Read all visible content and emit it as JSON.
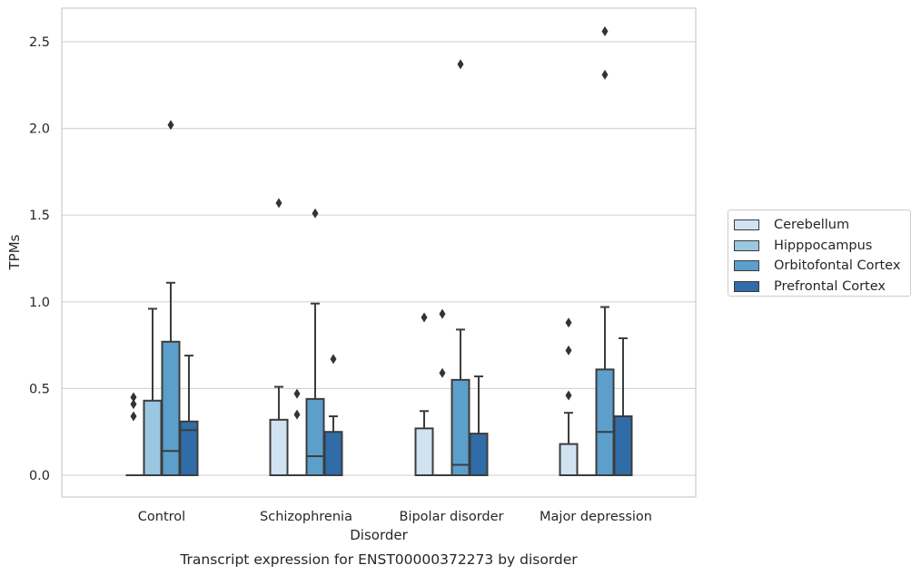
{
  "chart_data": {
    "type": "boxplot",
    "title": "",
    "caption": "Transcript expression for ENST00000372273 by disorder",
    "xlabel": "Disorder",
    "ylabel": "TPMs",
    "ylim": [
      -0.13,
      2.69
    ],
    "yticks": [
      0.0,
      0.5,
      1.0,
      1.5,
      2.0,
      2.5
    ],
    "ytick_labels": [
      "0.0",
      "0.5",
      "1.0",
      "1.5",
      "2.0",
      "2.5"
    ],
    "categories": [
      "Control",
      "Schizophrenia",
      "Bipolar disorder",
      "Major depression"
    ],
    "grid": "horizontal",
    "legend_position": "right",
    "series": [
      {
        "name": "Cerebellum",
        "color": "#d1e2f2",
        "boxes": [
          {
            "q1": 0,
            "median": 0,
            "q3": 0,
            "whisker_low": 0,
            "whisker_high": 0,
            "outliers": []
          },
          {
            "q1": 0,
            "median": 0,
            "q3": 0.32,
            "whisker_low": 0,
            "whisker_high": 0.51,
            "outliers": [
              1.57
            ]
          },
          {
            "q1": 0,
            "median": 0,
            "q3": 0.27,
            "whisker_low": 0,
            "whisker_high": 0.37,
            "outliers": [
              0.91
            ]
          },
          {
            "q1": 0,
            "median": 0,
            "q3": 0.18,
            "whisker_low": 0,
            "whisker_high": 0.36,
            "outliers": [
              0.46,
              0.72,
              0.88
            ]
          }
        ]
      },
      {
        "name": "Hipppocampus",
        "color": "#9ac7e0",
        "boxes": [
          {
            "q1": 0,
            "median": 0,
            "q3": 0.43,
            "whisker_low": 0,
            "whisker_high": 0.96,
            "outliers": []
          },
          {
            "q1": 0,
            "median": 0,
            "q3": 0,
            "whisker_low": 0,
            "whisker_high": 0,
            "outliers": [
              0.35,
              0.47
            ]
          },
          {
            "q1": 0,
            "median": 0,
            "q3": 0,
            "whisker_low": 0,
            "whisker_high": 0,
            "outliers": [
              0.59,
              0.93
            ]
          },
          {
            "q1": 0,
            "median": 0,
            "q3": 0,
            "whisker_low": 0,
            "whisker_high": 0,
            "outliers": []
          }
        ]
      },
      {
        "name": "Orbitofontal Cortex",
        "color": "#5c9fcb",
        "boxes": [
          {
            "q1": 0,
            "median": 0.14,
            "q3": 0.77,
            "whisker_low": 0,
            "whisker_high": 1.11,
            "outliers": [
              2.02
            ]
          },
          {
            "q1": 0,
            "median": 0.11,
            "q3": 0.44,
            "whisker_low": 0,
            "whisker_high": 0.99,
            "outliers": [
              1.51
            ]
          },
          {
            "q1": 0,
            "median": 0.06,
            "q3": 0.55,
            "whisker_low": 0,
            "whisker_high": 0.84,
            "outliers": [
              2.37
            ]
          },
          {
            "q1": 0,
            "median": 0.25,
            "q3": 0.61,
            "whisker_low": 0,
            "whisker_high": 0.97,
            "outliers": [
              2.31,
              2.56
            ]
          }
        ]
      },
      {
        "name": "Prefrontal Cortex",
        "color": "#2f6ca8",
        "boxes": [
          {
            "q1": 0,
            "median": 0.26,
            "q3": 0.31,
            "whisker_low": 0,
            "whisker_high": 0.69,
            "outliers": []
          },
          {
            "q1": 0,
            "median": 0,
            "q3": 0.25,
            "whisker_low": 0,
            "whisker_high": 0.34,
            "outliers": [
              0.67
            ]
          },
          {
            "q1": 0,
            "median": 0,
            "q3": 0.24,
            "whisker_low": 0,
            "whisker_high": 0.57,
            "outliers": []
          },
          {
            "q1": 0,
            "median": 0,
            "q3": 0.34,
            "whisker_low": 0,
            "whisker_high": 0.79,
            "outliers": []
          }
        ]
      }
    ],
    "outliers_left_of_boxes": [
      {
        "category": "Control",
        "values": [
          0.34,
          0.41,
          0.45
        ]
      }
    ]
  }
}
